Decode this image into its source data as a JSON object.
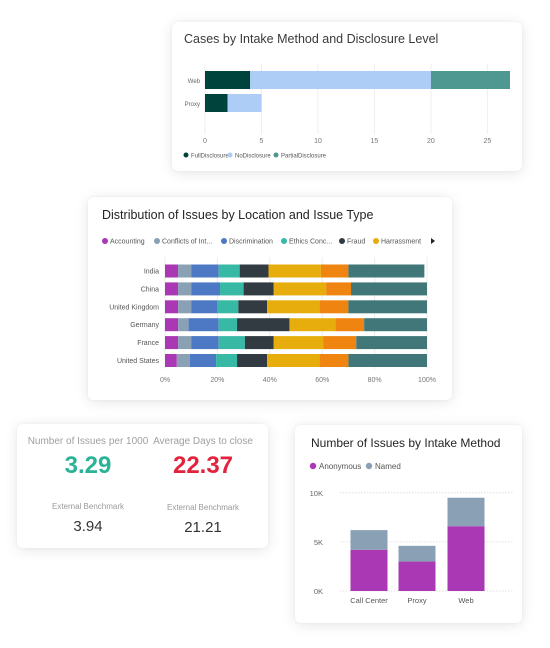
{
  "colors": {
    "full_disclosure": "#00433c",
    "no_disclosure": "#aecdf6",
    "partial_disclosure": "#4f9791",
    "accounting": "#aa37b3",
    "conflicts": "#8aa0b4",
    "discrimination": "#4c78c4",
    "ethics": "#38b9a6",
    "fraud": "#323b42",
    "harrassment": "#e6ad0c",
    "orange": "#ef8510",
    "teal_dark": "#42777a",
    "kpi_green": "#2ab397",
    "kpi_red": "#e3233d"
  },
  "chart_data": [
    {
      "type": "bar",
      "orientation": "horizontal",
      "stacked": true,
      "title": "Cases by Intake Method and Disclosure Level",
      "categories": [
        "Web",
        "Proxy"
      ],
      "series": [
        {
          "name": "FullDisclosure",
          "values": [
            4,
            2
          ]
        },
        {
          "name": "NoDisclosure",
          "values": [
            16,
            3
          ]
        },
        {
          "name": "PartialDisclosure",
          "values": [
            7,
            0
          ]
        }
      ],
      "xlim": [
        0,
        27
      ],
      "xticks": [
        "0",
        "5",
        "10",
        "15",
        "20",
        "25"
      ],
      "legend": "bottom-left"
    },
    {
      "type": "bar",
      "orientation": "horizontal",
      "stacked": true,
      "percent": true,
      "title": "Distribution of Issues by Location and Issue Type",
      "categories": [
        "India",
        "China",
        "United Kingdom",
        "Germany",
        "France",
        "United States"
      ],
      "series": [
        {
          "values": [
            5,
            5,
            5,
            5,
            5,
            4.5
          ]
        },
        {
          "values": [
            5,
            5,
            5,
            4,
            5,
            5
          ]
        },
        {
          "values": [
            10.5,
            11,
            10,
            11.5,
            10.5,
            10
          ]
        },
        {
          "values": [
            8,
            9,
            8,
            7,
            10,
            8
          ]
        },
        {
          "values": [
            11,
            11.5,
            11,
            20,
            11,
            11.5
          ]
        },
        {
          "values": [
            20,
            20,
            20,
            17.5,
            19,
            20
          ]
        },
        {
          "values": [
            10.5,
            9.5,
            11,
            11,
            12.5,
            11
          ]
        },
        {
          "values": [
            29,
            29,
            30,
            24,
            27,
            30
          ]
        }
      ],
      "legend_entries": [
        "Accounting",
        "Conflicts of Int...",
        "Discrimination",
        "Ethics Conc...",
        "Fraud",
        "Harrassment"
      ],
      "xticks": [
        "0%",
        "20%",
        "40%",
        "60%",
        "80%",
        "100%"
      ],
      "legend": "top-left"
    },
    {
      "type": "bar",
      "stacked": true,
      "title": "Number of Issues by Intake Method",
      "categories": [
        "Call Center",
        "Proxy",
        "Web"
      ],
      "series": [
        {
          "name": "Anonymous",
          "values": [
            4200,
            3000,
            6600
          ]
        },
        {
          "name": "Named",
          "values": [
            2000,
            1600,
            2900
          ]
        }
      ],
      "ylim": [
        0,
        11000
      ],
      "yticks": [
        "0K",
        "5K",
        "10K"
      ],
      "legend": "top-left"
    }
  ],
  "kpis": {
    "issues_per_1000_label": "Number of Issues per 1000",
    "issues_per_1000_value": "3.29",
    "avg_days_label": "Average Days to close",
    "avg_days_value": "22.37",
    "bench1_label": "External Benchmark",
    "bench1_value": "3.94",
    "bench2_label": "External Benchmark",
    "bench2_value": "21.21"
  }
}
